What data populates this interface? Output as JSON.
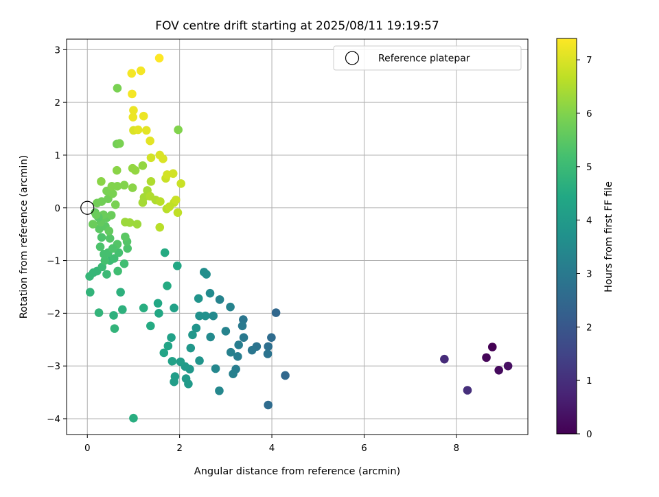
{
  "chart_data": {
    "type": "scatter",
    "title": "FOV centre drift starting at 2025/08/11 19:19:57",
    "xlabel": "Angular distance from reference (arcmin)",
    "ylabel": "Rotation from reference (arcmin)",
    "xlim": [
      -0.45,
      9.55
    ],
    "ylim": [
      -4.3,
      3.2
    ],
    "xticks": [
      0,
      2,
      4,
      6,
      8
    ],
    "xtick_labels": [
      "0",
      "2",
      "4",
      "6",
      "8"
    ],
    "yticks": [
      -4,
      -3,
      -2,
      -1,
      0,
      1,
      2,
      3
    ],
    "ytick_labels": [
      "−4",
      "−3",
      "−2",
      "−1",
      "0",
      "1",
      "2",
      "3"
    ],
    "grid": true,
    "colormap": "viridis",
    "colorbar": {
      "label": "Hours from first FF file",
      "range": [
        0,
        7.4
      ],
      "ticks": [
        0,
        1,
        2,
        3,
        4,
        5,
        6,
        7
      ],
      "tick_labels": [
        "0",
        "1",
        "2",
        "3",
        "4",
        "5",
        "6",
        "7"
      ]
    },
    "legend": {
      "position": "top-right",
      "label": "Reference platepar"
    },
    "reference_point": {
      "x": 0,
      "y": 0
    },
    "series": [
      {
        "color_variable": "Hours from first FF file",
        "points": [
          {
            "x": 8.78,
            "y": -2.64,
            "c": 0.0
          },
          {
            "x": 8.65,
            "y": -2.84,
            "c": 0.1
          },
          {
            "x": 8.92,
            "y": -3.08,
            "c": 0.2
          },
          {
            "x": 9.12,
            "y": -3.0,
            "c": 0.3
          },
          {
            "x": 7.74,
            "y": -2.87,
            "c": 0.9
          },
          {
            "x": 8.24,
            "y": -3.46,
            "c": 1.0
          },
          {
            "x": 4.09,
            "y": -1.99,
            "c": 2.5
          },
          {
            "x": 4.29,
            "y": -3.18,
            "c": 2.5
          },
          {
            "x": 3.92,
            "y": -3.74,
            "c": 2.6
          },
          {
            "x": 3.99,
            "y": -2.46,
            "c": 2.6
          },
          {
            "x": 3.92,
            "y": -2.63,
            "c": 2.7
          },
          {
            "x": 3.91,
            "y": -2.77,
            "c": 2.8
          },
          {
            "x": 3.67,
            "y": -2.63,
            "c": 2.8
          },
          {
            "x": 3.57,
            "y": -2.7,
            "c": 2.9
          },
          {
            "x": 3.38,
            "y": -2.12,
            "c": 2.9
          },
          {
            "x": 3.36,
            "y": -2.24,
            "c": 3.0
          },
          {
            "x": 3.39,
            "y": -2.46,
            "c": 3.0
          },
          {
            "x": 3.28,
            "y": -2.6,
            "c": 3.1
          },
          {
            "x": 3.26,
            "y": -2.82,
            "c": 3.1
          },
          {
            "x": 3.22,
            "y": -3.06,
            "c": 3.1
          },
          {
            "x": 3.16,
            "y": -3.15,
            "c": 3.2
          },
          {
            "x": 3.11,
            "y": -2.74,
            "c": 3.2
          },
          {
            "x": 3.1,
            "y": -1.88,
            "c": 3.3
          },
          {
            "x": 3.0,
            "y": -2.34,
            "c": 3.3
          },
          {
            "x": 2.87,
            "y": -1.74,
            "c": 3.3
          },
          {
            "x": 2.86,
            "y": -3.47,
            "c": 3.4
          },
          {
            "x": 2.78,
            "y": -3.05,
            "c": 3.4
          },
          {
            "x": 2.73,
            "y": -2.05,
            "c": 3.5
          },
          {
            "x": 2.67,
            "y": -2.45,
            "c": 3.5
          },
          {
            "x": 2.66,
            "y": -1.62,
            "c": 3.5
          },
          {
            "x": 2.58,
            "y": -1.26,
            "c": 3.6
          },
          {
            "x": 2.53,
            "y": -1.22,
            "c": 3.6
          },
          {
            "x": 2.56,
            "y": -2.05,
            "c": 3.7
          },
          {
            "x": 2.43,
            "y": -2.05,
            "c": 3.7
          },
          {
            "x": 2.41,
            "y": -1.72,
            "c": 3.8
          },
          {
            "x": 2.36,
            "y": -2.28,
            "c": 3.8
          },
          {
            "x": 2.43,
            "y": -2.9,
            "c": 3.8
          },
          {
            "x": 2.28,
            "y": -2.41,
            "c": 3.9
          },
          {
            "x": 2.24,
            "y": -2.66,
            "c": 3.9
          },
          {
            "x": 2.22,
            "y": -3.06,
            "c": 3.9
          },
          {
            "x": 2.19,
            "y": -3.34,
            "c": 4.0
          },
          {
            "x": 2.12,
            "y": -3.01,
            "c": 4.0
          },
          {
            "x": 2.14,
            "y": -3.24,
            "c": 4.0
          },
          {
            "x": 2.02,
            "y": -2.92,
            "c": 4.1
          },
          {
            "x": 1.9,
            "y": -3.2,
            "c": 4.1
          },
          {
            "x": 1.88,
            "y": -3.3,
            "c": 4.1
          },
          {
            "x": 1.88,
            "y": -1.9,
            "c": 4.2
          },
          {
            "x": 1.82,
            "y": -2.46,
            "c": 4.2
          },
          {
            "x": 1.84,
            "y": -2.91,
            "c": 4.2
          },
          {
            "x": 1.75,
            "y": -2.62,
            "c": 4.3
          },
          {
            "x": 1.66,
            "y": -2.75,
            "c": 4.3
          },
          {
            "x": 1.53,
            "y": -1.81,
            "c": 4.4
          },
          {
            "x": 1.55,
            "y": -2.0,
            "c": 4.4
          },
          {
            "x": 1.95,
            "y": -1.1,
            "c": 4.4
          },
          {
            "x": 1.73,
            "y": -1.48,
            "c": 4.5
          },
          {
            "x": 1.68,
            "y": -0.85,
            "c": 4.5
          },
          {
            "x": 1.37,
            "y": -2.24,
            "c": 4.5
          },
          {
            "x": 1.22,
            "y": -1.9,
            "c": 4.6
          },
          {
            "x": 1.0,
            "y": -3.99,
            "c": 4.6
          },
          {
            "x": 0.72,
            "y": -1.6,
            "c": 4.7
          },
          {
            "x": 0.76,
            "y": -1.93,
            "c": 4.7
          },
          {
            "x": 0.57,
            "y": -2.04,
            "c": 4.7
          },
          {
            "x": 0.59,
            "y": -2.29,
            "c": 4.8
          },
          {
            "x": 0.25,
            "y": -1.99,
            "c": 4.8
          },
          {
            "x": 0.06,
            "y": -1.6,
            "c": 4.8
          },
          {
            "x": 0.05,
            "y": -1.3,
            "c": 4.9
          },
          {
            "x": 0.13,
            "y": -1.23,
            "c": 4.9
          },
          {
            "x": 0.21,
            "y": -1.2,
            "c": 4.9
          },
          {
            "x": 0.32,
            "y": -1.12,
            "c": 5.0
          },
          {
            "x": 0.42,
            "y": -1.26,
            "c": 5.0
          },
          {
            "x": 0.49,
            "y": -1.0,
            "c": 5.0
          },
          {
            "x": 0.58,
            "y": -0.96,
            "c": 5.1
          },
          {
            "x": 0.66,
            "y": -1.2,
            "c": 5.1
          },
          {
            "x": 0.8,
            "y": -1.06,
            "c": 5.1
          },
          {
            "x": 0.36,
            "y": -0.88,
            "c": 5.2
          },
          {
            "x": 0.45,
            "y": -0.85,
            "c": 5.2
          },
          {
            "x": 0.68,
            "y": -0.85,
            "c": 5.2
          },
          {
            "x": 0.87,
            "y": -0.77,
            "c": 5.3
          },
          {
            "x": 0.28,
            "y": -0.74,
            "c": 5.3
          },
          {
            "x": 0.31,
            "y": -0.56,
            "c": 5.3
          },
          {
            "x": 0.49,
            "y": -0.58,
            "c": 5.4
          },
          {
            "x": 0.65,
            "y": -0.69,
            "c": 5.4
          },
          {
            "x": 0.86,
            "y": -0.64,
            "c": 5.4
          },
          {
            "x": 0.82,
            "y": -0.55,
            "c": 5.5
          },
          {
            "x": 0.26,
            "y": -0.4,
            "c": 5.5
          },
          {
            "x": 0.39,
            "y": -0.35,
            "c": 5.5
          },
          {
            "x": 0.47,
            "y": -0.44,
            "c": 5.6
          },
          {
            "x": 0.29,
            "y": -0.27,
            "c": 5.6
          },
          {
            "x": 0.42,
            "y": -0.19,
            "c": 5.6
          },
          {
            "x": 0.12,
            "y": -0.31,
            "c": 5.7
          },
          {
            "x": 0.35,
            "y": -0.13,
            "c": 5.7
          },
          {
            "x": 0.52,
            "y": -0.14,
            "c": 5.7
          },
          {
            "x": 0.21,
            "y": 0.09,
            "c": 5.8
          },
          {
            "x": 0.31,
            "y": 0.12,
            "c": 5.8
          },
          {
            "x": 0.45,
            "y": 0.17,
            "c": 5.8
          },
          {
            "x": 0.55,
            "y": 0.27,
            "c": 5.9
          },
          {
            "x": 0.42,
            "y": 0.32,
            "c": 5.9
          },
          {
            "x": 0.61,
            "y": 0.06,
            "c": 5.9
          },
          {
            "x": 0.53,
            "y": 0.41,
            "c": 6.0
          },
          {
            "x": 0.65,
            "y": 0.41,
            "c": 6.0
          },
          {
            "x": 0.8,
            "y": 0.43,
            "c": 6.0
          },
          {
            "x": 0.98,
            "y": 0.38,
            "c": 6.1
          },
          {
            "x": 0.3,
            "y": 0.5,
            "c": 6.1
          },
          {
            "x": 0.64,
            "y": 0.71,
            "c": 6.1
          },
          {
            "x": 1.04,
            "y": 0.71,
            "c": 6.2
          },
          {
            "x": 0.98,
            "y": 0.75,
            "c": 6.2
          },
          {
            "x": 1.2,
            "y": 0.8,
            "c": 6.2
          },
          {
            "x": 0.82,
            "y": -0.27,
            "c": 6.3
          },
          {
            "x": 0.92,
            "y": -0.28,
            "c": 6.3
          },
          {
            "x": 1.08,
            "y": -0.31,
            "c": 6.3
          },
          {
            "x": 1.23,
            "y": 0.2,
            "c": 6.4
          },
          {
            "x": 1.2,
            "y": 0.1,
            "c": 6.4
          },
          {
            "x": 1.3,
            "y": 0.33,
            "c": 6.4
          },
          {
            "x": 1.38,
            "y": 0.5,
            "c": 6.5
          },
          {
            "x": 1.36,
            "y": 0.22,
            "c": 6.5
          },
          {
            "x": 1.48,
            "y": 0.15,
            "c": 6.5
          },
          {
            "x": 1.58,
            "y": 0.12,
            "c": 6.6
          },
          {
            "x": 1.57,
            "y": -0.37,
            "c": 6.6
          },
          {
            "x": 1.72,
            "y": -0.02,
            "c": 6.6
          },
          {
            "x": 1.78,
            "y": 0.02,
            "c": 6.7
          },
          {
            "x": 1.96,
            "y": -0.09,
            "c": 6.7
          },
          {
            "x": 1.88,
            "y": 0.1,
            "c": 6.7
          },
          {
            "x": 1.92,
            "y": 0.15,
            "c": 6.8
          },
          {
            "x": 2.03,
            "y": 0.46,
            "c": 6.8
          },
          {
            "x": 1.7,
            "y": 0.56,
            "c": 6.8
          },
          {
            "x": 1.73,
            "y": 0.63,
            "c": 6.9
          },
          {
            "x": 1.86,
            "y": 0.65,
            "c": 6.9
          },
          {
            "x": 1.38,
            "y": 0.95,
            "c": 6.9
          },
          {
            "x": 1.57,
            "y": 1.0,
            "c": 7.0
          },
          {
            "x": 1.64,
            "y": 0.93,
            "c": 7.0
          },
          {
            "x": 1.0,
            "y": 1.47,
            "c": 7.0
          },
          {
            "x": 1.1,
            "y": 1.48,
            "c": 7.1
          },
          {
            "x": 1.28,
            "y": 1.47,
            "c": 7.1
          },
          {
            "x": 1.36,
            "y": 1.27,
            "c": 7.1
          },
          {
            "x": 0.99,
            "y": 1.72,
            "c": 7.2
          },
          {
            "x": 1.0,
            "y": 1.85,
            "c": 7.2
          },
          {
            "x": 1.22,
            "y": 1.74,
            "c": 7.2
          },
          {
            "x": 0.97,
            "y": 2.16,
            "c": 7.3
          },
          {
            "x": 0.96,
            "y": 2.55,
            "c": 7.3
          },
          {
            "x": 1.16,
            "y": 2.6,
            "c": 7.3
          },
          {
            "x": 1.56,
            "y": 2.84,
            "c": 7.4
          },
          {
            "x": 1.97,
            "y": 1.48,
            "c": 6.0
          },
          {
            "x": 0.64,
            "y": 1.21,
            "c": 5.8
          },
          {
            "x": 0.7,
            "y": 1.22,
            "c": 5.9
          },
          {
            "x": 0.65,
            "y": 2.27,
            "c": 5.9
          },
          {
            "x": 0.17,
            "y": -0.09,
            "c": 5.6
          },
          {
            "x": 0.24,
            "y": -0.18,
            "c": 5.5
          },
          {
            "x": 0.19,
            "y": -0.13,
            "c": 5.7
          },
          {
            "x": 0.38,
            "y": -1.0,
            "c": 5.2
          },
          {
            "x": 0.55,
            "y": -0.77,
            "c": 5.3
          }
        ]
      }
    ]
  }
}
